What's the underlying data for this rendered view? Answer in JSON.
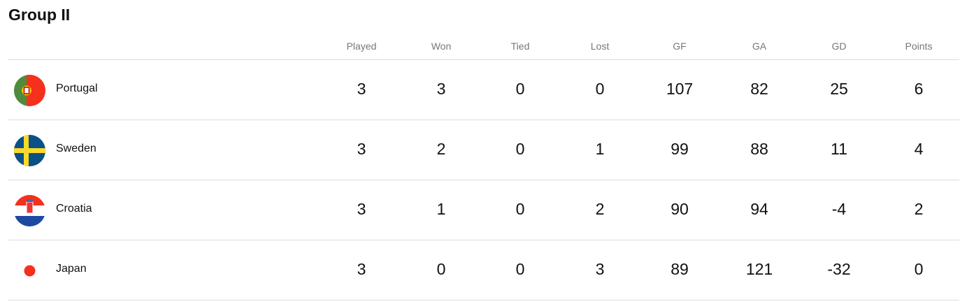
{
  "title": "Group II",
  "columns": [
    "Played",
    "Won",
    "Tied",
    "Lost",
    "GF",
    "GA",
    "GD",
    "Points"
  ],
  "rows": [
    {
      "team": "Portugal",
      "flag": "portugal-flag-icon",
      "values": [
        "3",
        "3",
        "0",
        "0",
        "107",
        "82",
        "25",
        "6"
      ]
    },
    {
      "team": "Sweden",
      "flag": "sweden-flag-icon",
      "values": [
        "3",
        "2",
        "0",
        "1",
        "99",
        "88",
        "11",
        "4"
      ]
    },
    {
      "team": "Croatia",
      "flag": "croatia-flag-icon",
      "values": [
        "3",
        "1",
        "0",
        "2",
        "90",
        "94",
        "-4",
        "2"
      ]
    },
    {
      "team": "Japan",
      "flag": "japan-flag-icon",
      "values": [
        "3",
        "0",
        "0",
        "3",
        "89",
        "121",
        "-32",
        "0"
      ]
    }
  ]
}
